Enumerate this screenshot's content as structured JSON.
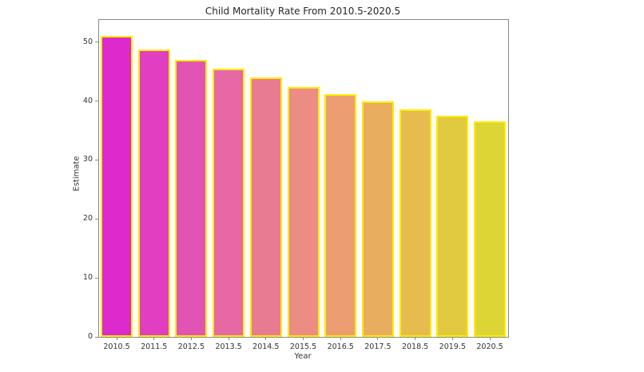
{
  "figure": {
    "background_color": "#ffffff",
    "axis_color": "#888888",
    "text_color": "#333333"
  },
  "chart_data": {
    "type": "bar",
    "title": "Child Mortality Rate From 2010.5-2020.5",
    "xlabel": "Year",
    "ylabel": "Estimate",
    "categories": [
      "2010.5",
      "2011.5",
      "2012.5",
      "2013.5",
      "2014.5",
      "2015.5",
      "2016.5",
      "2017.5",
      "2018.5",
      "2019.5",
      "2020.5"
    ],
    "values": [
      51.0,
      48.8,
      47.0,
      45.5,
      44.0,
      42.4,
      41.1,
      39.9,
      38.6,
      37.5,
      36.6
    ],
    "bar_colors": [
      "#DC2ACD",
      "#DF3FC0",
      "#E254B3",
      "#E668A5",
      "#E87B92",
      "#EB8D83",
      "#EC9E72",
      "#E9AD5F",
      "#E6BC4E",
      "#E2CA40",
      "#DDD535"
    ],
    "bar_edge_color": "#FFEB00",
    "ylim": [
      0,
      53.75
    ],
    "yticks": [
      0,
      10,
      20,
      30,
      40,
      50
    ],
    "grid": false,
    "legend": null
  }
}
